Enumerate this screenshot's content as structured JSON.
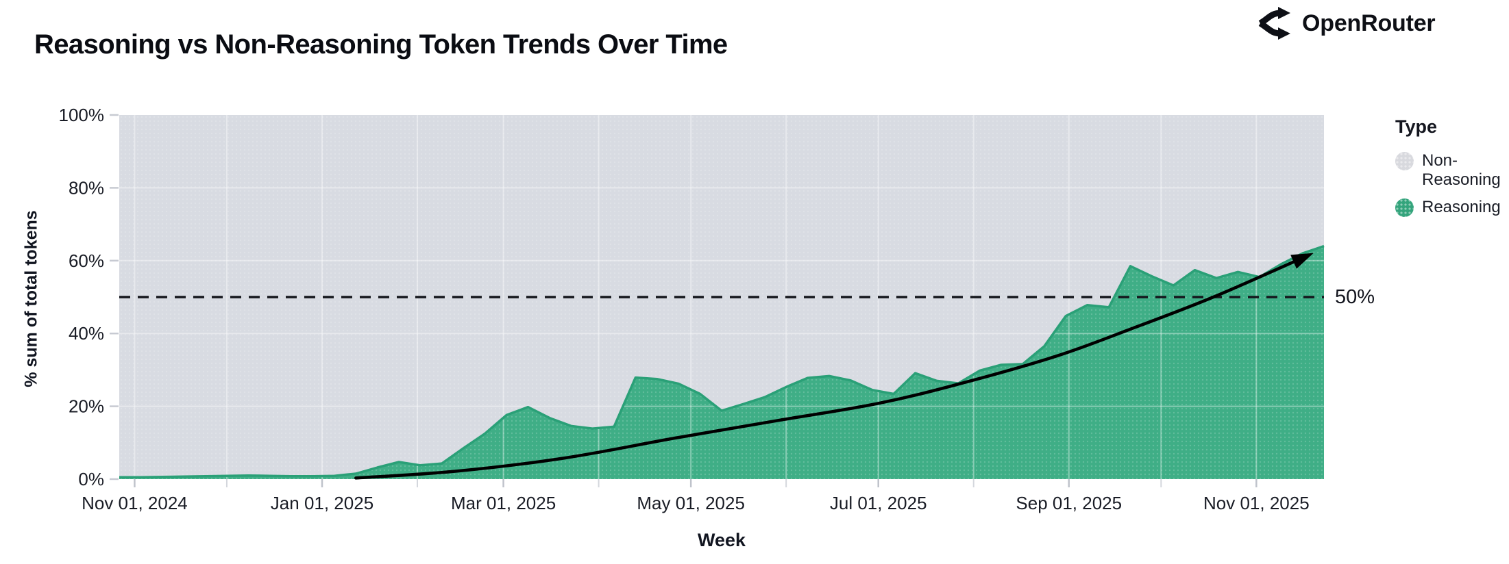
{
  "header": {
    "title": "Reasoning vs Non-Reasoning Token Trends Over Time",
    "brand": "OpenRouter"
  },
  "chart": {
    "y_axis": {
      "title": "% sum of total tokens",
      "ticks": [
        {
          "label": "100%",
          "value": 100
        },
        {
          "label": "80%",
          "value": 80
        },
        {
          "label": "60%",
          "value": 60
        },
        {
          "label": "40%",
          "value": 40
        },
        {
          "label": "20%",
          "value": 20
        },
        {
          "label": "0%",
          "value": 0
        }
      ]
    },
    "x_axis": {
      "title": "Week",
      "ticks": [
        {
          "label": "Nov 01, 2024",
          "day": 5
        },
        {
          "label": "Jan 01, 2025",
          "day": 66
        },
        {
          "label": "Mar 01, 2025",
          "day": 125
        },
        {
          "label": "May 01, 2025",
          "day": 186
        },
        {
          "label": "Jul 01, 2025",
          "day": 247
        },
        {
          "label": "Sep 01, 2025",
          "day": 309
        },
        {
          "label": "Nov 01, 2025",
          "day": 370
        }
      ],
      "minor_tick_days": [
        35,
        97,
        156,
        217,
        278,
        339
      ]
    },
    "legend": {
      "title": "Type",
      "items": [
        {
          "label": "Non-Reasoning",
          "color": "#d8d9de"
        },
        {
          "label": "Reasoning",
          "color": "#34a47c"
        }
      ]
    },
    "annotation": {
      "label": "50%",
      "value": 50
    },
    "colors": {
      "reasoning_fill": "#3fae86",
      "reasoning_edge": "#2aa077",
      "non_reasoning_fill": "#d8dbe2",
      "arrow": "#000000",
      "dashed_line": "#15171d"
    }
  },
  "chart_data": {
    "type": "area",
    "stacked_to_100_percent": true,
    "title": "Reasoning vs Non-Reasoning Token Trends Over Time",
    "xlabel": "Week",
    "ylabel": "% sum of total tokens",
    "ylim": [
      0,
      100
    ],
    "grid": "faint monthly verticals and 20%-step horizontals",
    "legend_position": "right",
    "weeks": [
      "2024-10-27",
      "2024-11-03",
      "2024-11-10",
      "2024-11-17",
      "2024-11-24",
      "2024-12-01",
      "2024-12-08",
      "2024-12-15",
      "2024-12-22",
      "2024-12-29",
      "2025-01-05",
      "2025-01-12",
      "2025-01-19",
      "2025-01-26",
      "2025-02-02",
      "2025-02-09",
      "2025-02-16",
      "2025-02-23",
      "2025-03-02",
      "2025-03-09",
      "2025-03-16",
      "2025-03-23",
      "2025-03-30",
      "2025-04-06",
      "2025-04-13",
      "2025-04-20",
      "2025-04-27",
      "2025-05-04",
      "2025-05-11",
      "2025-05-18",
      "2025-05-25",
      "2025-06-01",
      "2025-06-08",
      "2025-06-15",
      "2025-06-22",
      "2025-06-29",
      "2025-07-06",
      "2025-07-13",
      "2025-07-20",
      "2025-07-27",
      "2025-08-03",
      "2025-08-10",
      "2025-08-17",
      "2025-08-24",
      "2025-08-31",
      "2025-09-07",
      "2025-09-14",
      "2025-09-21",
      "2025-09-28",
      "2025-10-05",
      "2025-10-12",
      "2025-10-19",
      "2025-10-26",
      "2025-11-02",
      "2025-11-09",
      "2025-11-16",
      "2025-11-23"
    ],
    "series": [
      {
        "name": "Reasoning",
        "values": [
          0.5,
          0.5,
          0.6,
          0.7,
          0.8,
          0.9,
          1.0,
          0.9,
          0.8,
          0.8,
          0.9,
          1.5,
          3.2,
          4.7,
          3.8,
          4.3,
          8.5,
          12.5,
          17.6,
          19.8,
          16.8,
          14.6,
          13.9,
          14.4,
          27.9,
          27.5,
          26.2,
          23.4,
          18.8,
          20.6,
          22.5,
          25.3,
          27.8,
          28.3,
          27.1,
          24.5,
          23.4,
          29.1,
          27.0,
          26.3,
          29.8,
          31.4,
          31.6,
          36.5,
          44.8,
          47.8,
          47.2,
          58.5,
          55.7,
          53.2,
          57.4,
          55.2,
          56.9,
          55.5,
          59.0,
          62.0,
          64.0
        ]
      },
      {
        "name": "Non-Reasoning",
        "values": [
          99.5,
          99.5,
          99.4,
          99.3,
          99.2,
          99.1,
          99.0,
          99.1,
          99.2,
          99.2,
          99.1,
          98.5,
          96.8,
          95.3,
          96.2,
          95.7,
          91.5,
          87.5,
          82.4,
          80.2,
          83.2,
          85.4,
          86.1,
          85.6,
          72.1,
          72.5,
          73.8,
          76.6,
          81.2,
          79.4,
          77.5,
          74.7,
          72.2,
          71.7,
          72.9,
          75.5,
          76.6,
          70.9,
          73.0,
          73.7,
          70.2,
          68.6,
          68.4,
          63.5,
          55.2,
          52.2,
          52.8,
          41.5,
          44.3,
          46.8,
          42.6,
          44.8,
          43.1,
          44.5,
          41.0,
          38.0,
          36.0
        ]
      }
    ],
    "annotations": [
      {
        "type": "dashed-hline",
        "value": 50,
        "label": "50%"
      },
      {
        "type": "trend-arrow",
        "points_day_value": [
          [
            77,
            0.3
          ],
          [
            110,
            2.2
          ],
          [
            145,
            5.8
          ],
          [
            181,
            11.3
          ],
          [
            215,
            16.2
          ],
          [
            247,
            20.8
          ],
          [
            274,
            26.3
          ],
          [
            305,
            33.8
          ],
          [
            330,
            41.5
          ],
          [
            356,
            50.0
          ],
          [
            387,
            61.5
          ]
        ]
      }
    ]
  }
}
